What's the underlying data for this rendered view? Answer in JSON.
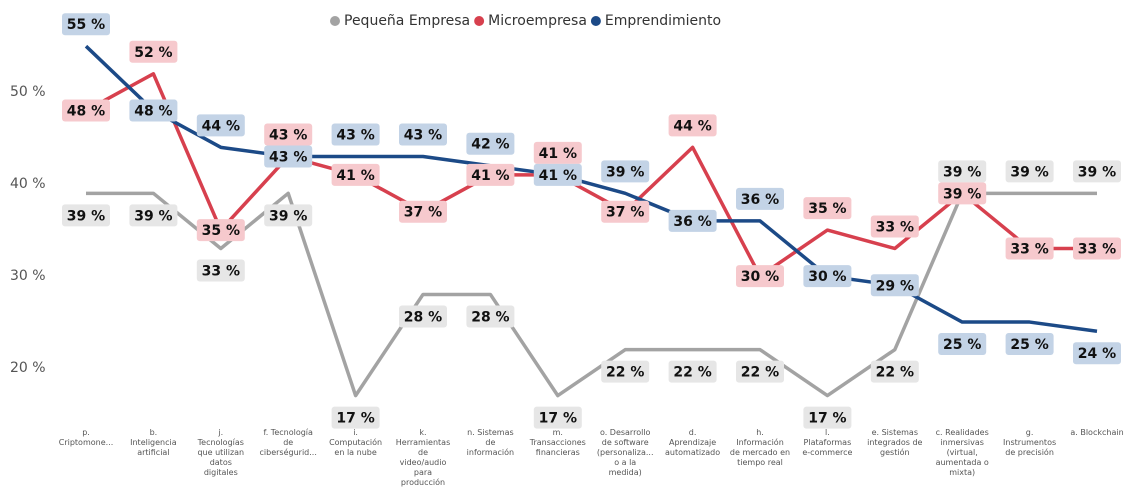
{
  "chart_data": {
    "type": "line",
    "categories": [
      "p. Criptomone...",
      "b. Inteligencia artificial",
      "j. Tecnologías que utilizan datos digitales",
      "f. Tecnología de ciberségurid...",
      "i. Computación en la nube",
      "k. Herramientas de video/audio para producción",
      "n. Sistemas de información",
      "m. Transacciones financieras",
      "o. Desarrollo de software (personaliza... o a la medida)",
      "d. Aprendizaje automatizado",
      "h. Información de mercado en tiempo real",
      "l. Plataformas e-commerce",
      "e. Sistemas integrados de gestión",
      "c. Realidades inmersivas (virtual, aumentada o mixta)",
      "g. Instrumentos de precisión",
      "a. Blockchain"
    ],
    "series": [
      {
        "name": "Pequeña Empresa",
        "color": "#a3a3a3",
        "values": [
          39,
          39,
          33,
          39,
          17,
          28,
          28,
          17,
          22,
          22,
          22,
          17,
          22,
          39,
          39,
          39
        ],
        "value_labels": [
          "39 %",
          "39 %",
          "33 %",
          "39 %",
          "17 %",
          "28 %",
          "28 %",
          "17 %",
          "22 %",
          "22 %",
          "22 %",
          "17 %",
          "22 %",
          "39 %",
          "39 %",
          "39 %"
        ]
      },
      {
        "name": "Microempresa",
        "color": "#d7404e",
        "values": [
          48,
          52,
          35,
          43,
          41,
          37,
          41,
          41,
          37,
          44,
          30,
          35,
          33,
          39,
          33,
          33
        ],
        "value_labels": [
          "48 %",
          "52 %",
          "35 %",
          "43 %",
          "41 %",
          "37 %",
          "41 %",
          "41 %",
          "37 %",
          "44 %",
          "30 %",
          "35 %",
          "33 %",
          "39 %",
          "33 %",
          "33 %"
        ]
      },
      {
        "name": "Emprendimiento",
        "color": "#1c4a87",
        "values": [
          55,
          48,
          44,
          43,
          43,
          43,
          42,
          41,
          39,
          36,
          36,
          30,
          29,
          25,
          25,
          24
        ],
        "value_labels": [
          "55 %",
          "48 %",
          "44 %",
          "43 %",
          "43 %",
          "43 %",
          "42 %",
          "41 %",
          "39 %",
          "36 %",
          "36 %",
          "30 %",
          "29 %",
          "25 %",
          "25 %",
          "24 %"
        ]
      }
    ],
    "ylim": [
      15,
      56
    ],
    "yticks": [
      {
        "value": 20,
        "label": "20 %"
      },
      {
        "value": 30,
        "label": "30 %"
      },
      {
        "value": 40,
        "label": "40 %"
      },
      {
        "value": 50,
        "label": "50 %"
      }
    ],
    "grid": false
  }
}
